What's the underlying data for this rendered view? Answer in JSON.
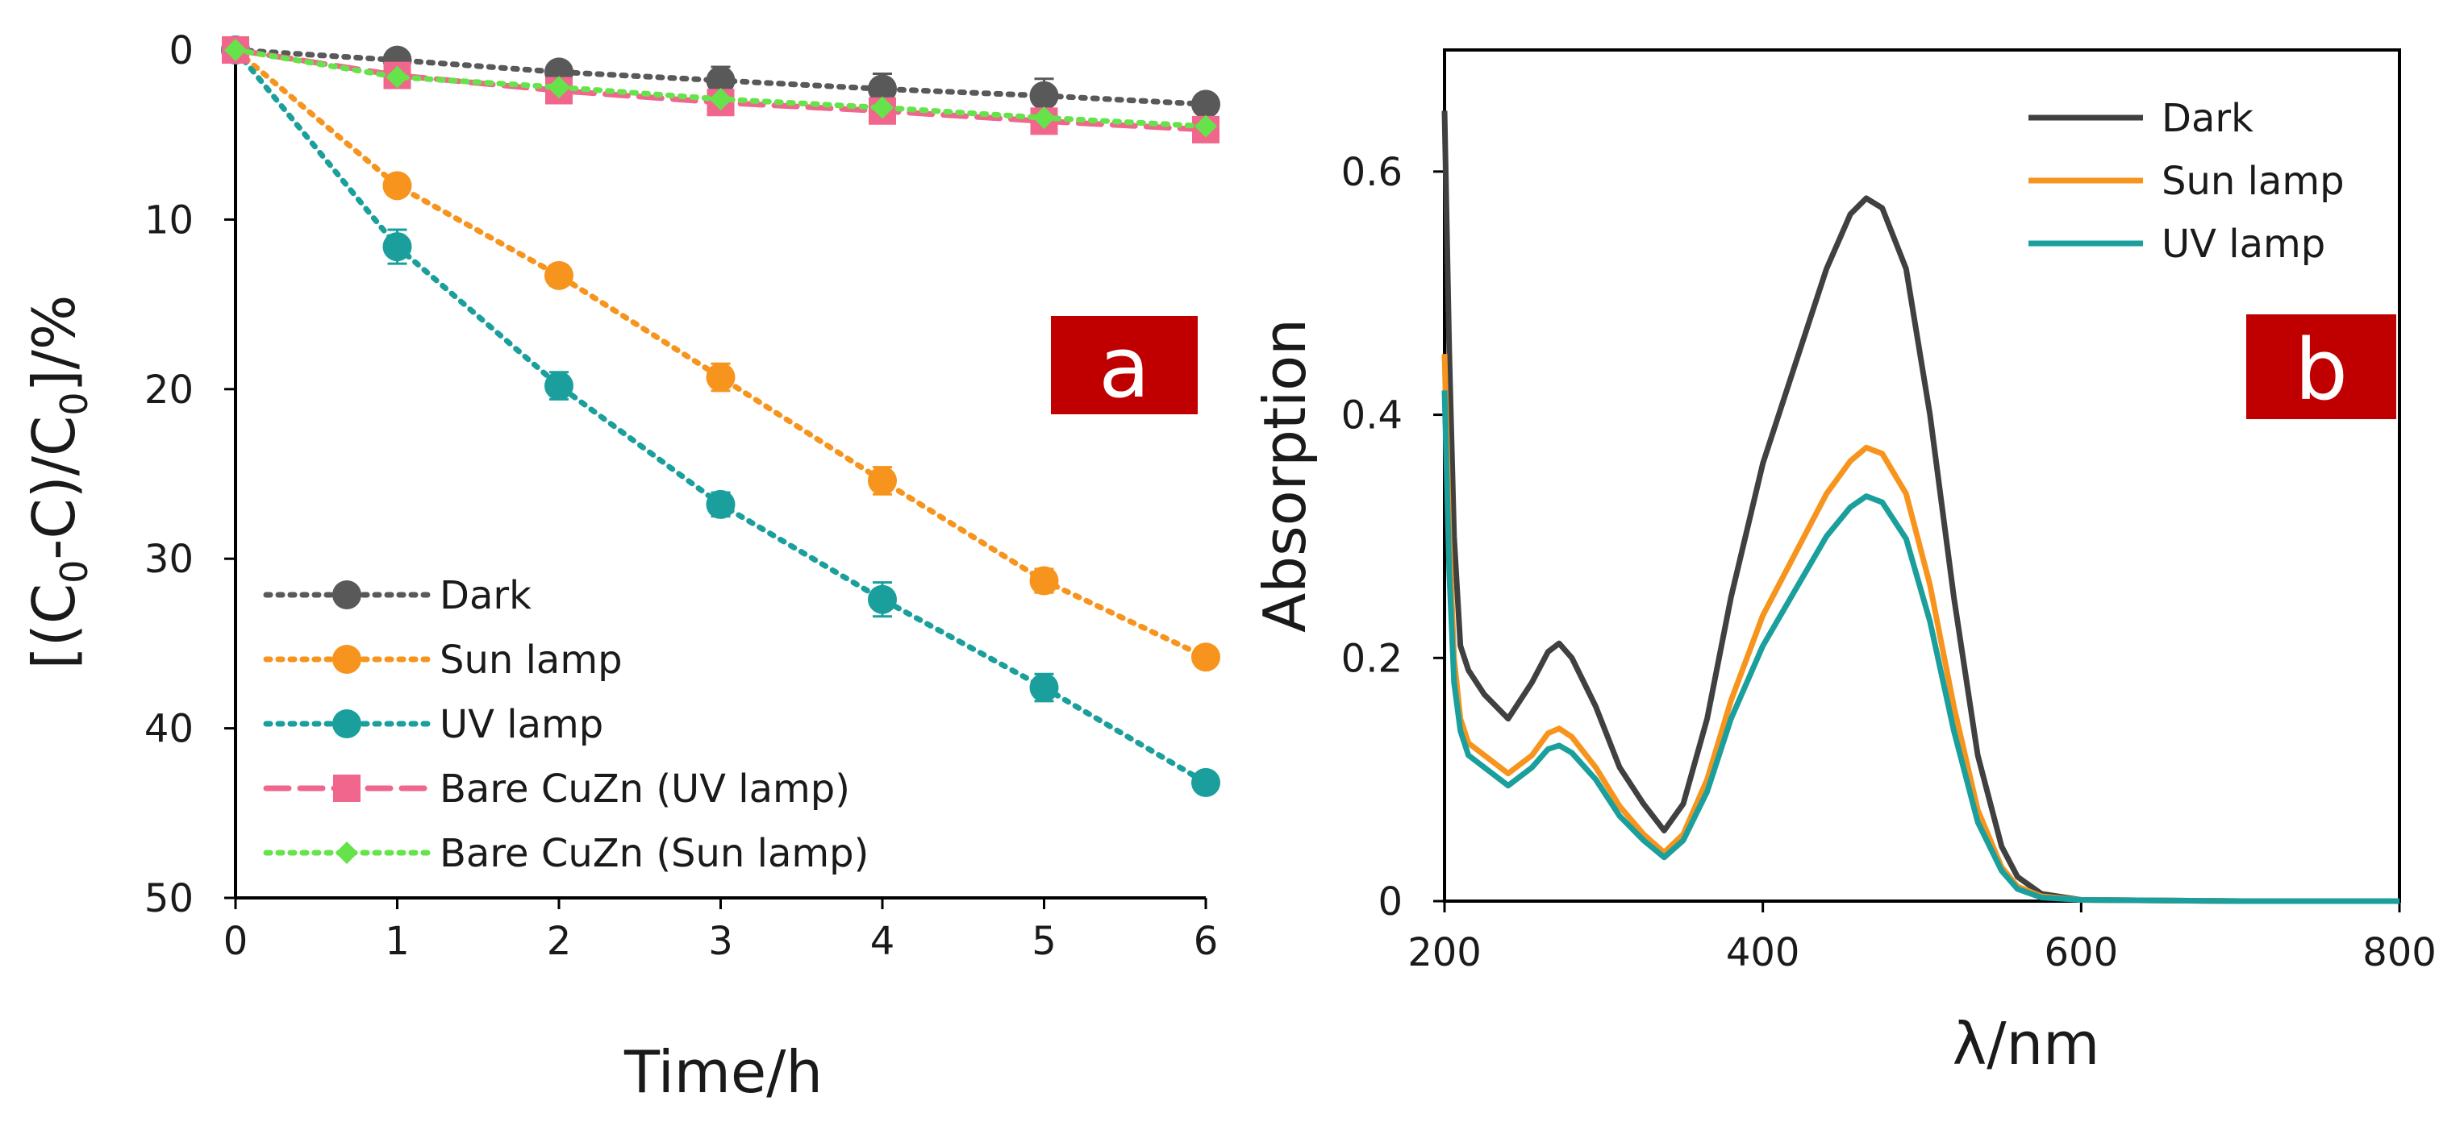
{
  "chart_data": [
    {
      "panel": "a",
      "type": "line",
      "xlabel": "Time/h",
      "ylabel": {
        "pre": "[(C",
        "sub1": "0",
        "mid": "-C)/C",
        "sub2": "0",
        "post": "]/%"
      },
      "x": [
        0,
        1,
        2,
        3,
        4,
        5,
        6
      ],
      "xlim": [
        0,
        6
      ],
      "ylim": [
        0,
        50
      ],
      "y_inverted": true,
      "x_ticks": [
        "0",
        "1",
        "2",
        "3",
        "4",
        "5",
        "6"
      ],
      "y_ticks": [
        "0",
        "10",
        "20",
        "30",
        "40",
        "50"
      ],
      "series": [
        {
          "name": "Dark",
          "color": "#595959",
          "marker": "circle",
          "line": "dotted",
          "values": [
            0,
            0.6,
            1.3,
            1.8,
            2.3,
            2.7,
            3.2
          ],
          "errors": [
            0,
            0.3,
            0.5,
            0.8,
            0.9,
            1.0,
            0.4
          ]
        },
        {
          "name": "Sun lamp",
          "color": "#f7941d",
          "marker": "circle",
          "line": "dotted",
          "values": [
            0,
            8.0,
            13.3,
            19.3,
            25.4,
            31.3,
            35.8
          ],
          "errors": [
            0,
            0.5,
            0.6,
            0.8,
            0.8,
            0.7,
            0.5
          ]
        },
        {
          "name": "UV lamp",
          "color": "#1a9f9c",
          "marker": "circle",
          "line": "dotted",
          "values": [
            0,
            11.6,
            19.8,
            26.8,
            32.4,
            37.6,
            43.2
          ],
          "errors": [
            0,
            1.0,
            0.8,
            0.7,
            1.0,
            0.8,
            0.3
          ]
        },
        {
          "name": "Bare CuZn (UV lamp)",
          "color": "#f0668c",
          "marker": "square",
          "line": "dashed",
          "values": [
            0,
            1.5,
            2.4,
            3.1,
            3.6,
            4.2,
            4.7
          ],
          "errors": [
            0,
            0,
            0,
            0,
            0,
            0,
            0
          ]
        },
        {
          "name": "Bare CuZn (Sun lamp)",
          "color": "#66e34a",
          "marker": "diamond",
          "line": "dotted",
          "values": [
            0,
            1.6,
            2.2,
            2.9,
            3.4,
            4.0,
            4.5
          ],
          "errors": [
            0,
            0,
            0,
            0,
            0,
            0,
            0
          ]
        }
      ],
      "legend_position": "bottom-left",
      "panel_label": "a"
    },
    {
      "panel": "b",
      "type": "line",
      "xlabel": "λ/nm",
      "ylabel": "Absorption",
      "xlim": [
        200,
        800
      ],
      "ylim": [
        0,
        0.7
      ],
      "x_ticks": [
        "200",
        "400",
        "600",
        "800"
      ],
      "y_ticks": [
        "0",
        "0.2",
        "0.4",
        "0.6"
      ],
      "series": [
        {
          "name": "Dark",
          "color": "#404040",
          "x": [
            200,
            203,
            206,
            210,
            215,
            225,
            240,
            255,
            265,
            272,
            280,
            295,
            310,
            325,
            338,
            350,
            365,
            380,
            400,
            420,
            440,
            455,
            465,
            475,
            490,
            505,
            520,
            535,
            550,
            560,
            575,
            600,
            700,
            800
          ],
          "values": [
            0.65,
            0.45,
            0.3,
            0.21,
            0.19,
            0.17,
            0.15,
            0.18,
            0.205,
            0.212,
            0.2,
            0.16,
            0.11,
            0.08,
            0.058,
            0.08,
            0.15,
            0.25,
            0.36,
            0.44,
            0.52,
            0.565,
            0.578,
            0.57,
            0.52,
            0.4,
            0.25,
            0.12,
            0.045,
            0.02,
            0.006,
            0.001,
            0,
            0
          ]
        },
        {
          "name": "Sun lamp",
          "color": "#f7941d",
          "x": [
            200,
            203,
            206,
            210,
            215,
            225,
            240,
            255,
            265,
            272,
            280,
            295,
            310,
            325,
            338,
            350,
            365,
            380,
            400,
            420,
            440,
            455,
            465,
            475,
            490,
            505,
            520,
            535,
            550,
            560,
            575,
            600,
            700,
            800
          ],
          "values": [
            0.45,
            0.3,
            0.2,
            0.15,
            0.13,
            0.12,
            0.105,
            0.12,
            0.138,
            0.142,
            0.135,
            0.11,
            0.078,
            0.055,
            0.04,
            0.055,
            0.1,
            0.165,
            0.235,
            0.285,
            0.335,
            0.362,
            0.373,
            0.368,
            0.335,
            0.26,
            0.16,
            0.075,
            0.028,
            0.012,
            0.004,
            0.001,
            0,
            0
          ]
        },
        {
          "name": "UV lamp",
          "color": "#1a9f9c",
          "x": [
            200,
            203,
            206,
            210,
            215,
            225,
            240,
            255,
            265,
            272,
            280,
            295,
            310,
            325,
            338,
            350,
            365,
            380,
            400,
            420,
            440,
            455,
            465,
            475,
            490,
            505,
            520,
            535,
            550,
            560,
            575,
            600,
            700,
            800
          ],
          "values": [
            0.42,
            0.27,
            0.18,
            0.14,
            0.12,
            0.11,
            0.095,
            0.11,
            0.125,
            0.128,
            0.122,
            0.1,
            0.07,
            0.05,
            0.036,
            0.05,
            0.09,
            0.15,
            0.21,
            0.255,
            0.3,
            0.324,
            0.333,
            0.328,
            0.298,
            0.23,
            0.14,
            0.065,
            0.025,
            0.01,
            0.003,
            0.001,
            0,
            0
          ]
        }
      ],
      "legend_position": "top-right",
      "panel_label": "b"
    }
  ]
}
